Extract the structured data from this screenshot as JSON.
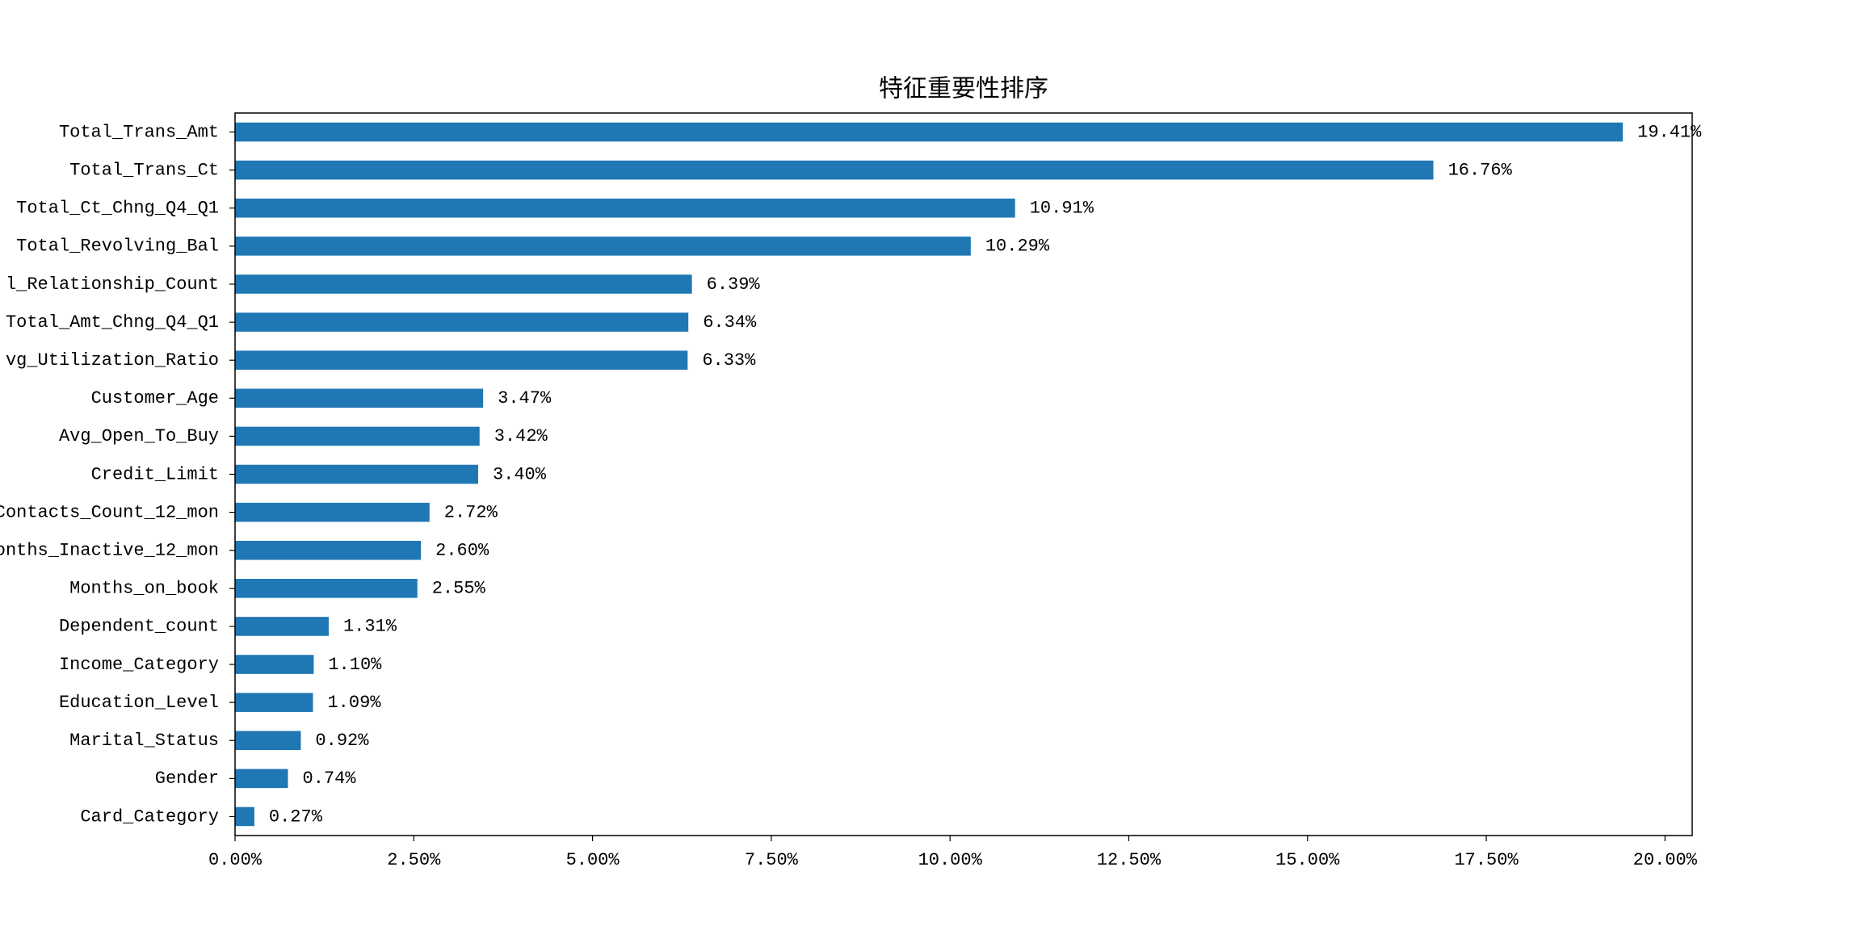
{
  "chart_data": {
    "type": "barh",
    "title": "特征重要性排序",
    "categories": [
      "Total_Trans_Amt",
      "Total_Trans_Ct",
      "Total_Ct_Chng_Q4_Q1",
      "Total_Revolving_Bal",
      "l_Relationship_Count",
      "Total_Amt_Chng_Q4_Q1",
      "vg_Utilization_Ratio",
      "Customer_Age",
      "Avg_Open_To_Buy",
      "Credit_Limit",
      "Contacts_Count_12_mon",
      "onths_Inactive_12_mon",
      "Months_on_book",
      "Dependent_count",
      "Income_Category",
      "Education_Level",
      "Marital_Status",
      "Gender",
      "Card_Category"
    ],
    "values": [
      19.41,
      16.76,
      10.91,
      10.29,
      6.39,
      6.34,
      6.33,
      3.47,
      3.42,
      3.4,
      2.72,
      2.6,
      2.55,
      1.31,
      1.1,
      1.09,
      0.92,
      0.74,
      0.27
    ],
    "value_labels": [
      "19.41%",
      "16.76%",
      "10.91%",
      "10.29%",
      "6.39%",
      "6.34%",
      "6.33%",
      "3.47%",
      "3.42%",
      "3.40%",
      "2.72%",
      "2.60%",
      "2.55%",
      "1.31%",
      "1.10%",
      "1.09%",
      "0.92%",
      "0.74%",
      "0.27%"
    ],
    "color": "#1f77b4",
    "xlim": [
      0,
      20.38
    ],
    "xticks": [
      {
        "value": 0,
        "label": "0.00%"
      },
      {
        "value": 2.5,
        "label": "2.50%"
      },
      {
        "value": 5,
        "label": "5.00%"
      },
      {
        "value": 7.5,
        "label": "7.50%"
      },
      {
        "value": 10,
        "label": "10.00%"
      },
      {
        "value": 12.5,
        "label": "12.50%"
      },
      {
        "value": 15,
        "label": "15.00%"
      },
      {
        "value": 17.5,
        "label": "17.50%"
      },
      {
        "value": 20,
        "label": "20.00%"
      }
    ]
  }
}
